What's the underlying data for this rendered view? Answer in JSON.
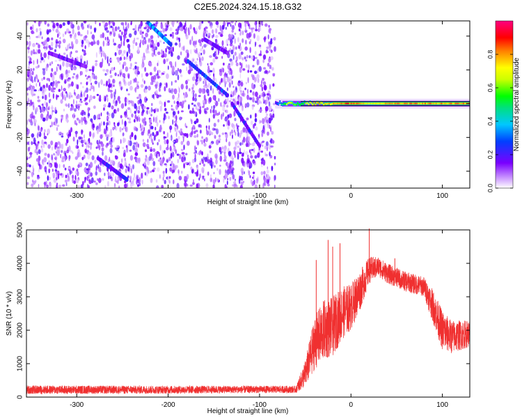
{
  "title": "C2E5.2024.324.15.18.G32",
  "chart_data": [
    {
      "type": "heatmap",
      "xlabel": "Height of straight line (km)",
      "ylabel": "Frequency (Hz)",
      "xlim": [
        -355,
        130
      ],
      "ylim": [
        -50,
        49
      ],
      "x_ticks": [
        "-300",
        "-200",
        "-100",
        "0",
        "100"
      ],
      "y_ticks": [
        "-40",
        "-20",
        "0",
        "20",
        "40"
      ],
      "colorbar": {
        "label": "Normalized spectral amplitude",
        "range": [
          0,
          1
        ],
        "ticks": [
          "0.0",
          "0.2",
          "0.4",
          "0.6",
          "0.8"
        ]
      },
      "noise_region": {
        "x_start": -355,
        "x_end": -83,
        "amplitude": 0.15
      },
      "features": [
        {
          "kind": "streak",
          "x0": -222,
          "y0": 48,
          "x1": -197,
          "y1": 35,
          "amplitude": 0.3
        },
        {
          "kind": "streak",
          "x0": -178,
          "y0": 25,
          "x1": -135,
          "y1": 5,
          "amplitude": 0.25
        },
        {
          "kind": "streak",
          "x0": -130,
          "y0": 0,
          "x1": -100,
          "y1": -25,
          "amplitude": 0.2
        },
        {
          "kind": "streak",
          "x0": -275,
          "y0": -33,
          "x1": -245,
          "y1": -45,
          "amplitude": 0.2
        },
        {
          "kind": "streak",
          "x0": -330,
          "y0": 30,
          "x1": -290,
          "y1": 22,
          "amplitude": 0.15
        },
        {
          "kind": "streak",
          "x0": -160,
          "y0": 38,
          "x1": -135,
          "y1": 30,
          "amplitude": 0.15
        }
      ],
      "carrier": {
        "frequency": 0,
        "x_start": -83,
        "x_end": 130,
        "points": [
          {
            "x": -83,
            "amplitude": 0.25
          },
          {
            "x": -70,
            "amplitude": 0.75
          },
          {
            "x": -55,
            "amplitude": 0.6
          },
          {
            "x": -40,
            "amplitude": 0.85
          },
          {
            "x": -25,
            "amplitude": 0.8
          },
          {
            "x": -10,
            "amplitude": 0.9
          },
          {
            "x": 5,
            "amplitude": 0.9
          },
          {
            "x": 20,
            "amplitude": 0.75
          },
          {
            "x": 40,
            "amplitude": 0.85
          },
          {
            "x": 60,
            "amplitude": 0.85
          },
          {
            "x": 80,
            "amplitude": 0.85
          },
          {
            "x": 100,
            "amplitude": 0.85
          },
          {
            "x": 130,
            "amplitude": 0.85
          }
        ]
      }
    },
    {
      "type": "line",
      "xlabel": "Height of straight line (km)",
      "ylabel": "SNR (10 * v/v)",
      "xlim": [
        -355,
        130
      ],
      "ylim": [
        0,
        5000
      ],
      "x_ticks": [
        "-300",
        "-200",
        "-100",
        "0",
        "100"
      ],
      "y_ticks": [
        "0",
        "1000",
        "2000",
        "3000",
        "4000",
        "5000"
      ],
      "series": [
        {
          "color": "#f03030",
          "envelope": [
            {
              "x": -355,
              "mean": 220,
              "spread": 130
            },
            {
              "x": -200,
              "mean": 220,
              "spread": 120
            },
            {
              "x": -100,
              "mean": 230,
              "spread": 110
            },
            {
              "x": -60,
              "mean": 230,
              "spread": 110
            },
            {
              "x": -50,
              "mean": 700,
              "spread": 400
            },
            {
              "x": -40,
              "mean": 1600,
              "spread": 800
            },
            {
              "x": -30,
              "mean": 2000,
              "spread": 900
            },
            {
              "x": -20,
              "mean": 2100,
              "spread": 900
            },
            {
              "x": -10,
              "mean": 2500,
              "spread": 800
            },
            {
              "x": 0,
              "mean": 2700,
              "spread": 700
            },
            {
              "x": 10,
              "mean": 3200,
              "spread": 600
            },
            {
              "x": 20,
              "mean": 3800,
              "spread": 400
            },
            {
              "x": 30,
              "mean": 3900,
              "spread": 300
            },
            {
              "x": 40,
              "mean": 3700,
              "spread": 300
            },
            {
              "x": 60,
              "mean": 3450,
              "spread": 300
            },
            {
              "x": 80,
              "mean": 3300,
              "spread": 300
            },
            {
              "x": 90,
              "mean": 2700,
              "spread": 500
            },
            {
              "x": 100,
              "mean": 2000,
              "spread": 600
            },
            {
              "x": 110,
              "mean": 1800,
              "spread": 500
            },
            {
              "x": 130,
              "mean": 1900,
              "spread": 400
            }
          ],
          "spikes": [
            {
              "x": -38,
              "value": 4100
            },
            {
              "x": -25,
              "value": 4700
            },
            {
              "x": -20,
              "value": 4500
            },
            {
              "x": -12,
              "value": 4600
            },
            {
              "x": 20,
              "value": 5050
            },
            {
              "x": 48,
              "value": 4150
            }
          ]
        }
      ]
    }
  ]
}
